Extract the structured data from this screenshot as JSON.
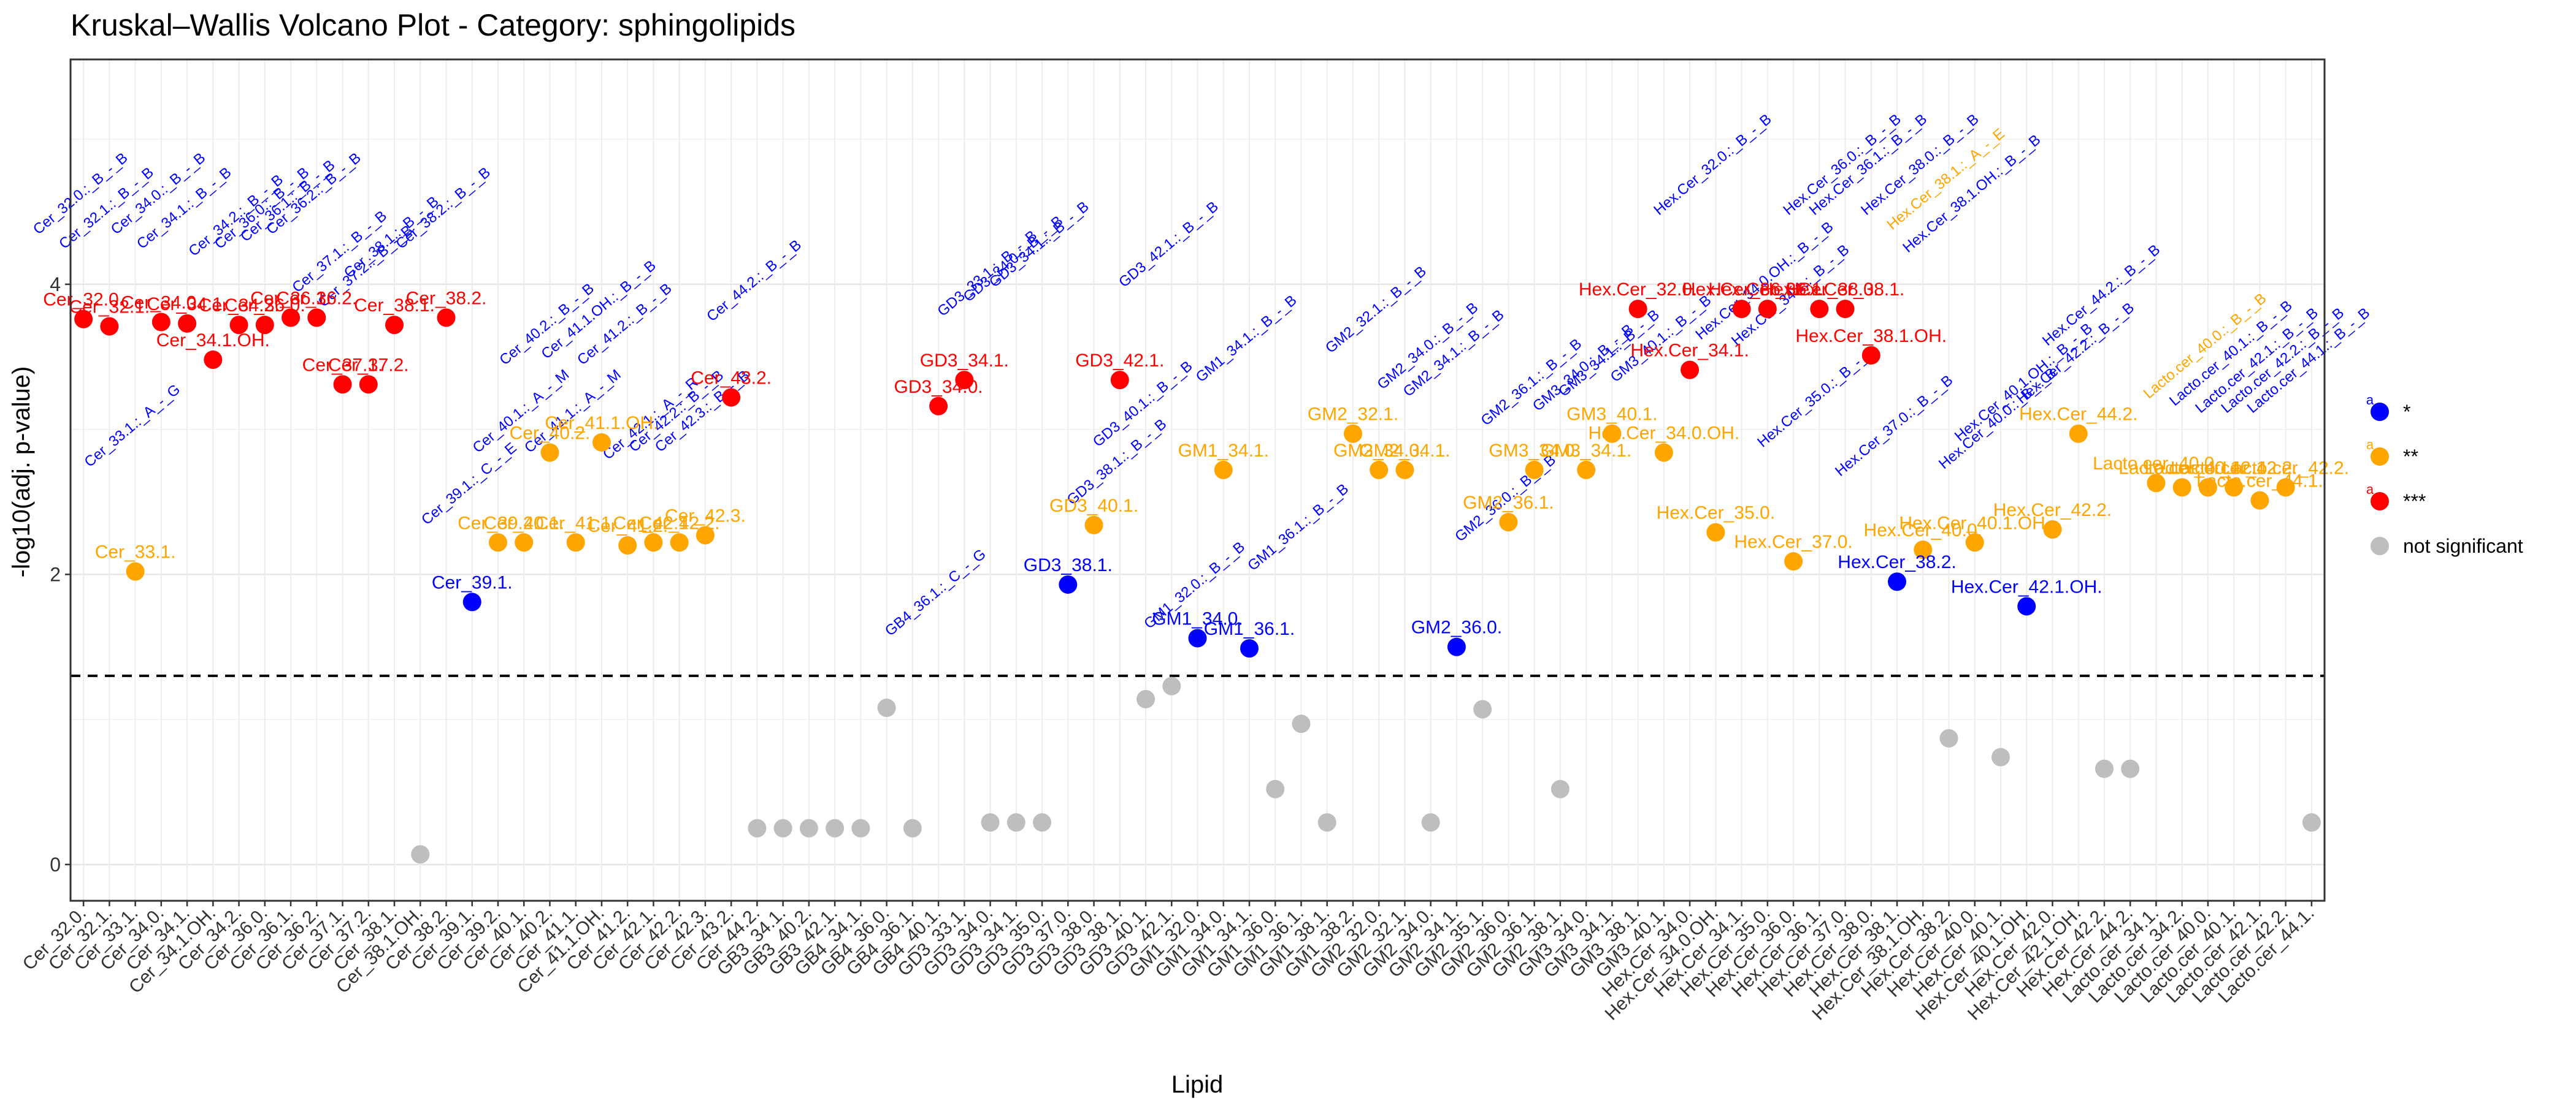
{
  "chart_data": {
    "type": "scatter",
    "title": "Kruskal–Wallis Volcano Plot - Category: sphingolipids",
    "xlabel": "Lipid",
    "ylabel": "-log10(adj. p-value)",
    "ylim": [
      -0.25,
      5.55
    ],
    "yticks": [
      0,
      2,
      4
    ],
    "threshold_y": 1.301,
    "colors": {
      "*": "#0000ff",
      "**": "#ffa500",
      "***": "#ff0000",
      "not significant": "#bebebe"
    },
    "legend": [
      {
        "key": "*",
        "label": "*",
        "letter": "a"
      },
      {
        "key": "**",
        "label": "**",
        "letter": "a"
      },
      {
        "key": "***",
        "label": "***",
        "letter": "a"
      },
      {
        "key": "not significant",
        "label": "not significant",
        "letter": ""
      }
    ],
    "categories": [
      "Cer_32.0.",
      "Cer_32.1.",
      "Cer_33.1.",
      "Cer_34.0.",
      "Cer_34.1.",
      "Cer_34.1.OH.",
      "Cer_34.2.",
      "Cer_36.0.",
      "Cer_36.1.",
      "Cer_36.2.",
      "Cer_37.1.",
      "Cer_37.2.",
      "Cer_38.1.",
      "Cer_38.1.OH.",
      "Cer_38.2.",
      "Cer_39.1.",
      "Cer_39.2.",
      "Cer_40.1.",
      "Cer_40.2.",
      "Cer_41.1.",
      "Cer_41.1.OH.",
      "Cer_41.2.",
      "Cer_42.1.",
      "Cer_42.2.",
      "Cer_42.3.",
      "Cer_43.2.",
      "Cer_44.2.",
      "GB3_34.1.",
      "GB3_40.2.",
      "GB3_42.1.",
      "GB4_34.1.",
      "GB4_36.0.",
      "GB4_36.1.",
      "GB4_40.1.",
      "GD3_33.1.",
      "GD3_34.0.",
      "GD3_34.1.",
      "GD3_35.0.",
      "GD3_37.0.",
      "GD3_38.0.",
      "GD3_38.1.",
      "GD3_40.1.",
      "GD3_42.1.",
      "GM1_32.0.",
      "GM1_34.0.",
      "GM1_34.1.",
      "GM1_36.0.",
      "GM1_36.1.",
      "GM1_38.1.",
      "GM1_38.2.",
      "GM2_32.0.",
      "GM2_32.1.",
      "GM2_34.0.",
      "GM2_34.1.",
      "GM2_35.1.",
      "GM2_36.0.",
      "GM2_36.1.",
      "GM2_38.1.",
      "GM3_34.0.",
      "GM3_34.1.",
      "GM3_38.1.",
      "GM3_40.1.",
      "Hex.Cer_34.0.",
      "Hex.Cer_34.0.OH.",
      "Hex.Cer_34.1.",
      "Hex.Cer_35.0.",
      "Hex.Cer_36.0.",
      "Hex.Cer_36.1.",
      "Hex.Cer_37.0.",
      "Hex.Cer_38.0.",
      "Hex.Cer_38.1.",
      "Hex.Cer_38.1.OH.",
      "Hex.Cer_38.2.",
      "Hex.Cer_40.0.",
      "Hex.Cer_40.1.",
      "Hex.Cer_40.1.OH.",
      "Hex.Cer_42.0.",
      "Hex.Cer_42.1.OH.",
      "Hex.Cer_42.2.",
      "Hex.Cer_44.2.",
      "Lacto.cer_34.1.",
      "Lacto.cer_34.2.",
      "Lacto.cer_40.0.",
      "Lacto.cer_40.1.",
      "Lacto.cer_42.1.",
      "Lacto.cer_42.2.",
      "Lacto.cer_44.1."
    ],
    "points": [
      {
        "lipid": "Cer_32.0.",
        "y": 3.76,
        "sig": "***",
        "label": "Cer_32.0."
      },
      {
        "lipid": "Cer_32.1.",
        "y": 3.71,
        "sig": "***",
        "label": "Cer_32.1."
      },
      {
        "lipid": "Cer_33.1.",
        "y": 2.02,
        "sig": "**",
        "label": "Cer_33.1."
      },
      {
        "lipid": "Cer_34.0.",
        "y": 3.74,
        "sig": "***",
        "label": "Cer_34.0."
      },
      {
        "lipid": "Cer_34.1.",
        "y": 3.73,
        "sig": "***",
        "label": "Cer_34.1."
      },
      {
        "lipid": "Cer_34.1.OH.",
        "y": 3.48,
        "sig": "***",
        "label": "Cer_34.1.OH."
      },
      {
        "lipid": "Cer_34.2.",
        "y": 3.72,
        "sig": "***",
        "label": "Cer_34.2."
      },
      {
        "lipid": "Cer_36.0.",
        "y": 3.72,
        "sig": "***",
        "label": "Cer_36.0."
      },
      {
        "lipid": "Cer_36.1.",
        "y": 3.77,
        "sig": "***",
        "label": "Cer_36.1."
      },
      {
        "lipid": "Cer_36.2.",
        "y": 3.77,
        "sig": "***",
        "label": "Cer_36.2."
      },
      {
        "lipid": "Cer_37.1.",
        "y": 3.31,
        "sig": "***",
        "label": "Cer_37.1."
      },
      {
        "lipid": "Cer_37.2.",
        "y": 3.31,
        "sig": "***",
        "label": "Cer_37.2."
      },
      {
        "lipid": "Cer_38.1.",
        "y": 3.72,
        "sig": "***",
        "label": "Cer_38.1."
      },
      {
        "lipid": "Cer_38.1.OH.",
        "y": 0.07,
        "sig": "not significant",
        "label": ""
      },
      {
        "lipid": "Cer_38.2.",
        "y": 3.77,
        "sig": "***",
        "label": "Cer_38.2."
      },
      {
        "lipid": "Cer_39.1.",
        "y": 1.81,
        "sig": "*",
        "label": "Cer_39.1."
      },
      {
        "lipid": "Cer_39.2.",
        "y": 2.22,
        "sig": "**",
        "label": "Cer_39.2."
      },
      {
        "lipid": "Cer_40.1.",
        "y": 2.22,
        "sig": "**",
        "label": "Cer_40.1."
      },
      {
        "lipid": "Cer_40.2.",
        "y": 2.84,
        "sig": "**",
        "label": "Cer_40.2."
      },
      {
        "lipid": "Cer_41.1.",
        "y": 2.22,
        "sig": "**",
        "label": "Cer_41.1."
      },
      {
        "lipid": "Cer_41.1.OH.",
        "y": 2.91,
        "sig": "**",
        "label": "Cer_41.1.OH."
      },
      {
        "lipid": "Cer_41.2.",
        "y": 2.2,
        "sig": "**",
        "label": "Cer_41.2."
      },
      {
        "lipid": "Cer_42.1.",
        "y": 2.22,
        "sig": "**",
        "label": "Cer_42.1."
      },
      {
        "lipid": "Cer_42.2.",
        "y": 2.22,
        "sig": "**",
        "label": "Cer_42.2."
      },
      {
        "lipid": "Cer_42.3.",
        "y": 2.27,
        "sig": "**",
        "label": "Cer_42.3."
      },
      {
        "lipid": "Cer_43.2.",
        "y": 3.22,
        "sig": "***",
        "label": "Cer_43.2."
      },
      {
        "lipid": "Cer_44.2.",
        "y": 0.25,
        "sig": "not significant",
        "label": ""
      },
      {
        "lipid": "GB3_34.1.",
        "y": 0.25,
        "sig": "not significant",
        "label": ""
      },
      {
        "lipid": "GB3_40.2.",
        "y": 0.25,
        "sig": "not significant",
        "label": ""
      },
      {
        "lipid": "GB3_42.1.",
        "y": 0.25,
        "sig": "not significant",
        "label": ""
      },
      {
        "lipid": "GB4_34.1.",
        "y": 0.25,
        "sig": "not significant",
        "label": ""
      },
      {
        "lipid": "GB4_36.0.",
        "y": 1.08,
        "sig": "not significant",
        "label": ""
      },
      {
        "lipid": "GB4_36.1.",
        "y": 0.25,
        "sig": "not significant",
        "label": ""
      },
      {
        "lipid": "GB4_40.1.",
        "y": 3.16,
        "sig": "***",
        "label": "GD3_34.0."
      },
      {
        "lipid": "GD3_33.1.",
        "y": 3.34,
        "sig": "***",
        "label": "GD3_34.1."
      },
      {
        "lipid": "GD3_34.0.",
        "y": 0.29,
        "sig": "not significant",
        "label": ""
      },
      {
        "lipid": "GD3_34.1.",
        "y": 0.29,
        "sig": "not significant",
        "label": ""
      },
      {
        "lipid": "GD3_35.0.",
        "y": 0.29,
        "sig": "not significant",
        "label": ""
      },
      {
        "lipid": "GD3_37.0.",
        "y": 1.93,
        "sig": "*",
        "label": "GD3_38.1."
      },
      {
        "lipid": "GD3_38.0.",
        "y": 2.34,
        "sig": "**",
        "label": "GD3_40.1."
      },
      {
        "lipid": "GD3_38.1.",
        "y": 3.34,
        "sig": "***",
        "label": "GD3_42.1."
      },
      {
        "lipid": "GD3_40.1.",
        "y": 1.14,
        "sig": "not significant",
        "label": ""
      },
      {
        "lipid": "GD3_42.1.",
        "y": 1.23,
        "sig": "not significant",
        "label": ""
      },
      {
        "lipid": "GM1_32.0.",
        "y": 1.56,
        "sig": "*",
        "label": "GM1_34.0."
      },
      {
        "lipid": "GM1_34.0.",
        "y": 2.72,
        "sig": "**",
        "label": "GM1_34.1."
      },
      {
        "lipid": "GM1_34.1.",
        "y": 1.49,
        "sig": "*",
        "label": "GM1_36.1."
      },
      {
        "lipid": "GM1_36.0.",
        "y": 0.52,
        "sig": "not significant",
        "label": ""
      },
      {
        "lipid": "GM1_36.1.",
        "y": 0.97,
        "sig": "not significant",
        "label": ""
      },
      {
        "lipid": "GM1_38.1.",
        "y": 0.29,
        "sig": "not significant",
        "label": ""
      },
      {
        "lipid": "GM1_38.2.",
        "y": 2.97,
        "sig": "**",
        "label": "GM2_32.1."
      },
      {
        "lipid": "GM2_32.0.",
        "y": 2.72,
        "sig": "**",
        "label": "GM2_34.0."
      },
      {
        "lipid": "GM2_32.1.",
        "y": 2.72,
        "sig": "**",
        "label": "GM2_34.1."
      },
      {
        "lipid": "GM2_34.0.",
        "y": 0.29,
        "sig": "not significant",
        "label": ""
      },
      {
        "lipid": "GM2_34.1.",
        "y": 1.5,
        "sig": "*",
        "label": "GM2_36.0."
      },
      {
        "lipid": "GM2_35.1.",
        "y": 1.07,
        "sig": "not significant",
        "label": ""
      },
      {
        "lipid": "GM2_36.0.",
        "y": 2.36,
        "sig": "**",
        "label": "GM2_36.1."
      },
      {
        "lipid": "GM2_36.1.",
        "y": 2.72,
        "sig": "**",
        "label": "GM3_34.0."
      },
      {
        "lipid": "GM2_38.1.",
        "y": 0.52,
        "sig": "not significant",
        "label": ""
      },
      {
        "lipid": "GM3_34.0.",
        "y": 2.72,
        "sig": "**",
        "label": "GM3_34.1."
      },
      {
        "lipid": "GM3_34.1.",
        "y": 2.97,
        "sig": "**",
        "label": "GM3_40.1."
      },
      {
        "lipid": "GM3_38.1.",
        "y": 3.83,
        "sig": "***",
        "label": "Hex.Cer_32.0."
      },
      {
        "lipid": "GM3_40.1.",
        "y": 2.84,
        "sig": "**",
        "label": "Hex.Cer_34.0.OH."
      },
      {
        "lipid": "Hex.Cer_34.0.",
        "y": 3.41,
        "sig": "***",
        "label": "Hex.Cer_34.1."
      },
      {
        "lipid": "Hex.Cer_34.0.OH.",
        "y": 2.29,
        "sig": "**",
        "label": "Hex.Cer_35.0."
      },
      {
        "lipid": "Hex.Cer_34.1.",
        "y": 3.83,
        "sig": "***",
        "label": "Hex.Cer_36.0."
      },
      {
        "lipid": "Hex.Cer_35.0.",
        "y": 3.83,
        "sig": "***",
        "label": "Hex.Cer_36.1."
      },
      {
        "lipid": "Hex.Cer_36.0.",
        "y": 2.09,
        "sig": "**",
        "label": "Hex.Cer_37.0."
      },
      {
        "lipid": "Hex.Cer_36.1.",
        "y": 3.83,
        "sig": "***",
        "label": "Hex.Cer_38.0."
      },
      {
        "lipid": "Hex.Cer_37.0.",
        "y": 3.83,
        "sig": "***",
        "label": "Hex.Cer_38.1."
      },
      {
        "lipid": "Hex.Cer_38.0.",
        "y": 3.51,
        "sig": "***",
        "label": "Hex.Cer_38.1.OH."
      },
      {
        "lipid": "Hex.Cer_38.1.",
        "y": 1.95,
        "sig": "*",
        "label": "Hex.Cer_38.2."
      },
      {
        "lipid": "Hex.Cer_38.1.OH.",
        "y": 2.17,
        "sig": "**",
        "label": "Hex.Cer_40.0."
      },
      {
        "lipid": "Hex.Cer_38.2.",
        "y": 0.87,
        "sig": "not significant",
        "label": ""
      },
      {
        "lipid": "Hex.Cer_40.0.",
        "y": 2.22,
        "sig": "**",
        "label": "Hex.Cer_40.1.OH."
      },
      {
        "lipid": "Hex.Cer_40.1.",
        "y": 0.74,
        "sig": "not significant",
        "label": ""
      },
      {
        "lipid": "Hex.Cer_40.1.OH.",
        "y": 1.78,
        "sig": "*",
        "label": "Hex.Cer_42.1.OH."
      },
      {
        "lipid": "Hex.Cer_42.0.",
        "y": 2.31,
        "sig": "**",
        "label": "Hex.Cer_42.2."
      },
      {
        "lipid": "Hex.Cer_42.1.OH.",
        "y": 2.97,
        "sig": "**",
        "label": "Hex.Cer_44.2."
      },
      {
        "lipid": "Hex.Cer_42.2.",
        "y": 0.66,
        "sig": "not significant",
        "label": ""
      },
      {
        "lipid": "Hex.Cer_44.2.",
        "y": 0.66,
        "sig": "not significant",
        "label": ""
      },
      {
        "lipid": "Lacto.cer_34.1.",
        "y": 2.63,
        "sig": "**",
        "label": "Lacto.cer_40.0."
      },
      {
        "lipid": "Lacto.cer_34.2.",
        "y": 2.6,
        "sig": "**",
        "label": "Lacto.cer_40.1."
      },
      {
        "lipid": "Lacto.cer_40.0.",
        "y": 2.6,
        "sig": "**",
        "label": "Lacto.cer_42.1."
      },
      {
        "lipid": "Lacto.cer_40.1.",
        "y": 2.6,
        "sig": "**",
        "label": "Lacto.cer_42.2."
      },
      {
        "lipid": "Lacto.cer_42.1.",
        "y": 2.51,
        "sig": "**",
        "label": "Lacto.cer_44.1."
      },
      {
        "lipid": "Lacto.cer_42.2.",
        "y": 2.6,
        "sig": "**",
        "label": "Lacto.cer_42.2."
      },
      {
        "lipid": "Lacto.cer_44.1.",
        "y": 0.29,
        "sig": "not significant",
        "label": ""
      }
    ],
    "rotated_labels": [
      {
        "text": "Cer_32.0.:_B_-_B",
        "x": 1,
        "y": 4.6,
        "sig": "*"
      },
      {
        "text": "Cer_32.1.:_B_-_B",
        "x": 2,
        "y": 4.5,
        "sig": "*"
      },
      {
        "text": "Cer_34.0.:_B_-_B",
        "x": 4,
        "y": 4.6,
        "sig": "*"
      },
      {
        "text": "Cer_34.1.:_B_-_B",
        "x": 5,
        "y": 4.5,
        "sig": "*"
      },
      {
        "text": "Cer_34.2.:_B_-_B",
        "x": 7,
        "y": 4.45,
        "sig": "*"
      },
      {
        "text": "Cer_36.0.:_B_-_B",
        "x": 8,
        "y": 4.5,
        "sig": "*"
      },
      {
        "text": "Cer_36.1.:_B_-_B",
        "x": 9,
        "y": 4.55,
        "sig": "*"
      },
      {
        "text": "Cer_36.2.:_B_-_B",
        "x": 10,
        "y": 4.6,
        "sig": "*"
      },
      {
        "text": "Cer_37.1.:_B_-_B",
        "x": 11,
        "y": 4.2,
        "sig": "*"
      },
      {
        "text": "Cer_37.2.:_B_-_B",
        "x": 12,
        "y": 4.1,
        "sig": "*"
      },
      {
        "text": "Cer_38.1.:_B_-_B",
        "x": 13,
        "y": 4.3,
        "sig": "*"
      },
      {
        "text": "Cer_38.2.:_B_-_B",
        "x": 15,
        "y": 4.5,
        "sig": "*"
      },
      {
        "text": "Cer_33.1.:_A_-_G",
        "x": 3,
        "y": 3.0,
        "sig": "*"
      },
      {
        "text": "Cer_39.1.:_C_-_E",
        "x": 16,
        "y": 2.6,
        "sig": "*"
      },
      {
        "text": "Cer_40.1.:_A_-_M",
        "x": 18,
        "y": 3.1,
        "sig": "*"
      },
      {
        "text": "Cer_40.2.:_B_-_B",
        "x": 19,
        "y": 3.7,
        "sig": "*"
      },
      {
        "text": "Cer_41.1.:_A_-_M",
        "x": 20,
        "y": 3.1,
        "sig": "*"
      },
      {
        "text": "Cer_41.1.OH.:_B_-_B",
        "x": 21,
        "y": 3.8,
        "sig": "*"
      },
      {
        "text": "Cer_41.2.:_B_-_B",
        "x": 22,
        "y": 3.7,
        "sig": "*"
      },
      {
        "text": "Cer_42.1.:_A_-_R",
        "x": 23,
        "y": 3.05,
        "sig": "*"
      },
      {
        "text": "Cer_42.2.:_B_-_B",
        "x": 24,
        "y": 3.1,
        "sig": "*"
      },
      {
        "text": "Cer_42.3.:_B_-_B",
        "x": 25,
        "y": 3.1,
        "sig": "*"
      },
      {
        "text": "Cer_44.2.:_B_-_B",
        "x": 27,
        "y": 4.0,
        "sig": "*"
      },
      {
        "text": "GB4_36.1.:_C_-_G",
        "x": 34,
        "y": 1.85,
        "sig": "*"
      },
      {
        "text": "GD3_33.1.:_B_-_B",
        "x": 36,
        "y": 4.05,
        "sig": "*"
      },
      {
        "text": "GD3_34.0.:_B_-_B",
        "x": 37,
        "y": 4.15,
        "sig": "*"
      },
      {
        "text": "GD3_34.1.:_B_-_B",
        "x": 38,
        "y": 4.25,
        "sig": "*"
      },
      {
        "text": "GD3_38.1.:_B_-_B",
        "x": 41,
        "y": 2.75,
        "sig": "*"
      },
      {
        "text": "GD3_40.1.:_B_-_B",
        "x": 42,
        "y": 3.15,
        "sig": "*"
      },
      {
        "text": "GD3_42.1.:_B_-_B",
        "x": 43,
        "y": 4.25,
        "sig": "*"
      },
      {
        "text": "GM1_32.0.:_B_-_B",
        "x": 44,
        "y": 1.9,
        "sig": "*"
      },
      {
        "text": "GM1_34.1.:_B_-_B",
        "x": 46,
        "y": 3.6,
        "sig": "*"
      },
      {
        "text": "GM1_36.1.:_B_-_B",
        "x": 48,
        "y": 2.3,
        "sig": "*"
      },
      {
        "text": "GM2_32.1.:_B_-_B",
        "x": 51,
        "y": 3.8,
        "sig": "*"
      },
      {
        "text": "GM2_34.0.:_B_-_B",
        "x": 53,
        "y": 3.55,
        "sig": "*"
      },
      {
        "text": "GM2_34.1.:_B_-_B",
        "x": 54,
        "y": 3.5,
        "sig": "*"
      },
      {
        "text": "GM2_36.0.:_B_-_B",
        "x": 56,
        "y": 2.5,
        "sig": "*"
      },
      {
        "text": "GM2_36.1.:_B_-_B",
        "x": 57,
        "y": 3.3,
        "sig": "*"
      },
      {
        "text": "GM3_34.0.:_B_-_B",
        "x": 59,
        "y": 3.4,
        "sig": "*"
      },
      {
        "text": "GM3_34.1.:_B_-_B",
        "x": 60,
        "y": 3.5,
        "sig": "*"
      },
      {
        "text": "GM3_40.1.:_B_-_B",
        "x": 62,
        "y": 3.6,
        "sig": "*"
      },
      {
        "text": "Hex.Cer_32.0.:_B_-_B",
        "x": 64,
        "y": 4.8,
        "sig": "*"
      },
      {
        "text": "Hex.Cer_34.0.OH.:_B_-_B",
        "x": 66,
        "y": 4.0,
        "sig": "*"
      },
      {
        "text": "Hex.Cer_34.1.:_B_-_B",
        "x": 67,
        "y": 3.9,
        "sig": "*"
      },
      {
        "text": "Hex.Cer_35.0.:_B_-_B",
        "x": 68,
        "y": 3.2,
        "sig": "*"
      },
      {
        "text": "Hex.Cer_36.0.:_B_-_B",
        "x": 69,
        "y": 4.8,
        "sig": "*"
      },
      {
        "text": "Hex.Cer_36.1.:_B_-_B",
        "x": 70,
        "y": 4.8,
        "sig": "*"
      },
      {
        "text": "Hex.Cer_37.0.:_B_-_B",
        "x": 71,
        "y": 3.0,
        "sig": "*"
      },
      {
        "text": "Hex.Cer_38.0.:_B_-_B",
        "x": 72,
        "y": 4.8,
        "sig": "*"
      },
      {
        "text": "Hex.Cer_38.1.:_A_-_E",
        "x": 73,
        "y": 4.7,
        "sig": "**"
      },
      {
        "text": "Hex.Cer_38.1.OH.:_B_-_B",
        "x": 74,
        "y": 4.6,
        "sig": "*"
      },
      {
        "text": "Hex.Cer_40.0.:_B_-_B",
        "x": 75,
        "y": 3.05,
        "sig": "*"
      },
      {
        "text": "Hex.Cer_40.1.OH.:_B_-_B",
        "x": 76,
        "y": 3.3,
        "sig": "*"
      },
      {
        "text": "Hex.Cer_42.2.:_B_-_B",
        "x": 78,
        "y": 3.5,
        "sig": "*"
      },
      {
        "text": "Hex.Cer_44.2.:_B_-_B",
        "x": 79,
        "y": 3.9,
        "sig": "*"
      },
      {
        "text": "Lacto.cer_40.0.:_B_-_B",
        "x": 83,
        "y": 3.55,
        "sig": "**"
      },
      {
        "text": "Lacto.cer_40.1.:_B_-_B",
        "x": 84,
        "y": 3.5,
        "sig": "*"
      },
      {
        "text": "Lacto.cer_42.1.:_B_-_B",
        "x": 85,
        "y": 3.45,
        "sig": "*"
      },
      {
        "text": "Lacto.cer_42.2.:_B_-_B",
        "x": 86,
        "y": 3.45,
        "sig": "*"
      },
      {
        "text": "Lacto.cer_44.1.:_B_-_B",
        "x": 87,
        "y": 3.45,
        "sig": "*"
      }
    ]
  }
}
